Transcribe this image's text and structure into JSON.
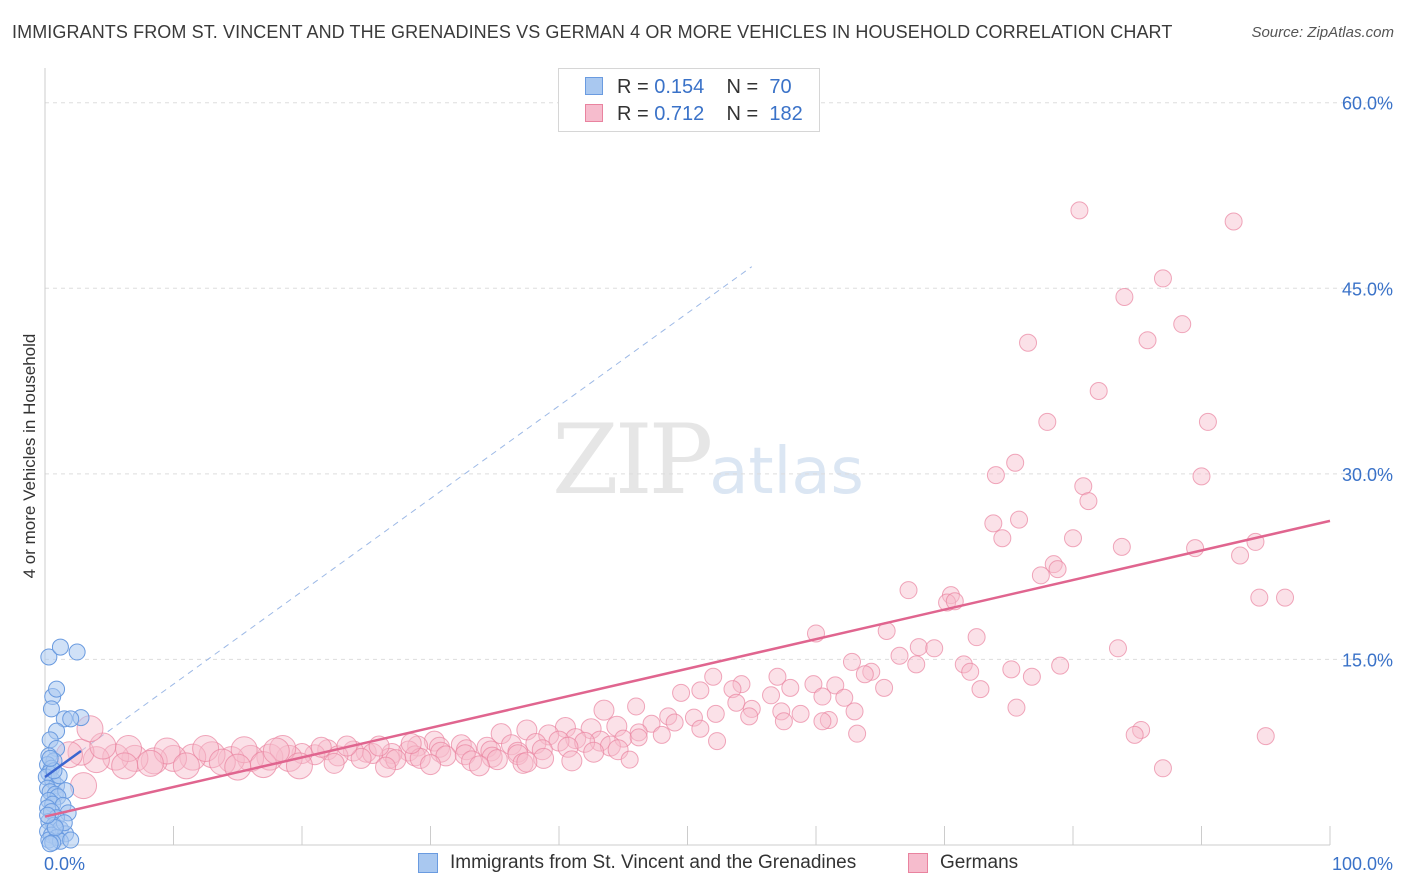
{
  "title": "IMMIGRANTS FROM ST. VINCENT AND THE GRENADINES VS GERMAN 4 OR MORE VEHICLES IN HOUSEHOLD CORRELATION CHART",
  "source": "Source: ZipAtlas.com",
  "watermark": {
    "zip": "ZIP",
    "atlas": "atlas"
  },
  "legend_top": [
    {
      "r_label": "R =",
      "r_value": "0.154",
      "n_label": "N =",
      "n_value": "70"
    },
    {
      "r_label": "R =",
      "r_value": "0.712",
      "n_label": "N =",
      "n_value": "182"
    }
  ],
  "legend_bottom": [
    "Immigrants from St. Vincent and the Grenadines",
    "Germans"
  ],
  "colors": {
    "blue_fill": "#a9c8f0",
    "blue_stroke": "#6a9be0",
    "blue_line": "#3a66d0",
    "pink_fill": "#f6bccd",
    "pink_stroke": "#e9839f",
    "pink_line": "#e0658f",
    "axis_text": "#3a72c8",
    "grid": "#dddddd"
  },
  "chart_data": {
    "type": "scatter",
    "title": "IMMIGRANTS FROM ST. VINCENT AND THE GRENADINES VS GERMAN 4 OR MORE VEHICLES IN HOUSEHOLD CORRELATION CHART",
    "xlabel": "",
    "ylabel": "4 or more Vehicles in Household",
    "xlim": [
      0,
      100
    ],
    "ylim": [
      0,
      62
    ],
    "x_tick_labels": [
      "0.0%",
      "100.0%"
    ],
    "y_ticks": [
      15,
      30,
      45,
      60
    ],
    "y_tick_labels": [
      "15.0%",
      "30.0%",
      "45.0%",
      "60.0%"
    ],
    "grid": true,
    "legend_position": "top-center",
    "series": [
      {
        "name": "Immigrants from St. Vincent and the Grenadines",
        "points": [
          [
            0.3,
            15.2
          ],
          [
            1.2,
            16.0
          ],
          [
            2.5,
            15.6
          ],
          [
            0.6,
            12.0
          ],
          [
            0.9,
            12.6
          ],
          [
            0.5,
            11.0
          ],
          [
            1.5,
            10.2
          ],
          [
            2.8,
            10.3
          ],
          [
            2.0,
            10.2
          ],
          [
            0.9,
            9.2
          ],
          [
            0.4,
            8.5
          ],
          [
            0.9,
            7.8
          ],
          [
            0.3,
            7.2
          ],
          [
            0.7,
            6.8
          ],
          [
            0.2,
            6.5
          ],
          [
            0.5,
            6.2
          ],
          [
            0.3,
            5.8
          ],
          [
            0.1,
            5.5
          ],
          [
            0.6,
            5.2
          ],
          [
            0.9,
            4.8
          ],
          [
            0.2,
            4.6
          ],
          [
            0.4,
            4.3
          ],
          [
            0.8,
            4.1
          ],
          [
            1.6,
            4.4
          ],
          [
            1.0,
            3.9
          ],
          [
            0.3,
            3.6
          ],
          [
            0.6,
            3.3
          ],
          [
            1.4,
            3.2
          ],
          [
            0.2,
            3.0
          ],
          [
            0.5,
            2.7
          ],
          [
            1.8,
            2.6
          ],
          [
            0.9,
            2.2
          ],
          [
            0.3,
            1.9
          ],
          [
            0.7,
            1.6
          ],
          [
            1.2,
            1.3
          ],
          [
            0.2,
            1.1
          ],
          [
            0.5,
            0.8
          ],
          [
            1.6,
            0.9
          ],
          [
            0.9,
            0.6
          ],
          [
            0.3,
            0.4
          ],
          [
            1.2,
            0.3
          ],
          [
            0.6,
            0.2
          ],
          [
            2.0,
            0.4
          ],
          [
            0.4,
            0.1
          ],
          [
            1.5,
            1.8
          ],
          [
            0.8,
            1.4
          ],
          [
            0.2,
            2.4
          ],
          [
            1.1,
            5.6
          ],
          [
            0.7,
            6.0
          ],
          [
            0.4,
            7.0
          ]
        ],
        "trend": [
          [
            0.0,
            5.5
          ],
          [
            2.8,
            7.6
          ]
        ]
      },
      {
        "name": "Germans",
        "points": [
          [
            80.5,
            51.3
          ],
          [
            92.5,
            50.4
          ],
          [
            87.0,
            45.8
          ],
          [
            84.0,
            44.3
          ],
          [
            88.5,
            42.1
          ],
          [
            76.5,
            40.6
          ],
          [
            85.8,
            40.8
          ],
          [
            82.0,
            36.7
          ],
          [
            78.0,
            34.2
          ],
          [
            90.5,
            34.2
          ],
          [
            74.0,
            29.9
          ],
          [
            75.5,
            30.9
          ],
          [
            80.8,
            29.0
          ],
          [
            90.0,
            29.8
          ],
          [
            81.2,
            27.8
          ],
          [
            73.8,
            26.0
          ],
          [
            75.8,
            26.3
          ],
          [
            74.5,
            24.8
          ],
          [
            80.0,
            24.8
          ],
          [
            83.8,
            24.1
          ],
          [
            89.5,
            24.0
          ],
          [
            93.0,
            23.4
          ],
          [
            94.2,
            24.5
          ],
          [
            78.5,
            22.7
          ],
          [
            77.5,
            21.8
          ],
          [
            78.8,
            22.3
          ],
          [
            67.2,
            20.6
          ],
          [
            70.5,
            20.2
          ],
          [
            70.2,
            19.6
          ],
          [
            70.8,
            19.7
          ],
          [
            94.5,
            20.0
          ],
          [
            96.5,
            20.0
          ],
          [
            60.0,
            17.1
          ],
          [
            65.5,
            17.3
          ],
          [
            72.5,
            16.8
          ],
          [
            68.0,
            16.0
          ],
          [
            69.2,
            15.9
          ],
          [
            83.5,
            15.9
          ],
          [
            66.5,
            15.3
          ],
          [
            71.5,
            14.6
          ],
          [
            67.8,
            14.6
          ],
          [
            64.3,
            14.0
          ],
          [
            62.8,
            14.8
          ],
          [
            75.2,
            14.2
          ],
          [
            72.0,
            14.0
          ],
          [
            76.8,
            13.6
          ],
          [
            79.0,
            14.5
          ],
          [
            52.0,
            13.6
          ],
          [
            57.0,
            13.6
          ],
          [
            54.2,
            13.0
          ],
          [
            59.8,
            13.0
          ],
          [
            61.5,
            12.9
          ],
          [
            53.5,
            12.6
          ],
          [
            63.8,
            13.8
          ],
          [
            72.8,
            12.6
          ],
          [
            65.3,
            12.7
          ],
          [
            49.5,
            12.3
          ],
          [
            51.0,
            12.5
          ],
          [
            56.5,
            12.1
          ],
          [
            58.0,
            12.7
          ],
          [
            60.5,
            12.0
          ],
          [
            62.2,
            11.9
          ],
          [
            53.8,
            11.5
          ],
          [
            55.0,
            11.0
          ],
          [
            57.3,
            10.8
          ],
          [
            58.8,
            10.6
          ],
          [
            61.0,
            10.1
          ],
          [
            63.0,
            10.8
          ],
          [
            75.6,
            11.1
          ],
          [
            43.5,
            10.9
          ],
          [
            46.0,
            11.2
          ],
          [
            48.5,
            10.4
          ],
          [
            50.5,
            10.3
          ],
          [
            52.2,
            10.6
          ],
          [
            54.8,
            10.4
          ],
          [
            57.5,
            10.0
          ],
          [
            60.5,
            10.0
          ],
          [
            63.2,
            9.0
          ],
          [
            47.2,
            9.8
          ],
          [
            49.0,
            9.9
          ],
          [
            51.0,
            9.4
          ],
          [
            40.5,
            9.5
          ],
          [
            42.5,
            9.4
          ],
          [
            44.5,
            9.6
          ],
          [
            46.2,
            9.1
          ],
          [
            48.0,
            8.9
          ],
          [
            85.3,
            9.3
          ],
          [
            84.8,
            8.9
          ],
          [
            52.3,
            8.4
          ],
          [
            95.0,
            8.8
          ],
          [
            35.5,
            9.0
          ],
          [
            37.5,
            9.3
          ],
          [
            39.2,
            8.9
          ],
          [
            41.3,
            8.6
          ],
          [
            43.2,
            8.4
          ],
          [
            45.0,
            8.6
          ],
          [
            36.3,
            8.1
          ],
          [
            38.2,
            8.2
          ],
          [
            40.0,
            8.4
          ],
          [
            42.0,
            8.3
          ],
          [
            44.0,
            8.0
          ],
          [
            46.2,
            8.7
          ],
          [
            30.3,
            8.4
          ],
          [
            32.4,
            8.1
          ],
          [
            34.4,
            7.9
          ],
          [
            29.0,
            8.0
          ],
          [
            30.7,
            7.9
          ],
          [
            32.8,
            7.7
          ],
          [
            34.7,
            7.6
          ],
          [
            36.8,
            7.5
          ],
          [
            38.7,
            7.7
          ],
          [
            40.7,
            7.9
          ],
          [
            42.7,
            7.5
          ],
          [
            44.6,
            7.7
          ],
          [
            28.3,
            7.6
          ],
          [
            27.0,
            7.4
          ],
          [
            28.8,
            7.2
          ],
          [
            30.8,
            7.5
          ],
          [
            32.7,
            7.3
          ],
          [
            34.8,
            7.1
          ],
          [
            36.8,
            7.3
          ],
          [
            38.8,
            7.0
          ],
          [
            25.0,
            7.5
          ],
          [
            26.8,
            7.0
          ],
          [
            22.0,
            7.7
          ],
          [
            24.0,
            7.6
          ],
          [
            25.5,
            7.4
          ],
          [
            27.3,
            6.9
          ],
          [
            29.2,
            7.0
          ],
          [
            31.2,
            7.2
          ],
          [
            33.2,
            6.8
          ],
          [
            35.2,
            6.9
          ],
          [
            37.2,
            6.6
          ],
          [
            21.0,
            7.3
          ],
          [
            22.8,
            7.2
          ],
          [
            24.6,
            7.0
          ],
          [
            20.0,
            7.4
          ],
          [
            19.0,
            7.0
          ],
          [
            17.5,
            7.1
          ],
          [
            16.0,
            7.0
          ],
          [
            14.5,
            6.9
          ],
          [
            13.0,
            7.3
          ],
          [
            11.5,
            7.1
          ],
          [
            10.0,
            7.0
          ],
          [
            8.5,
            6.8
          ],
          [
            7.0,
            7.0
          ],
          [
            5.5,
            7.1
          ],
          [
            4.0,
            6.9
          ],
          [
            2.8,
            7.5
          ],
          [
            1.9,
            7.3
          ],
          [
            4.5,
            8.0
          ],
          [
            6.5,
            7.8
          ],
          [
            9.5,
            7.6
          ],
          [
            12.5,
            7.8
          ],
          [
            15.5,
            7.7
          ],
          [
            18.5,
            7.8
          ],
          [
            21.5,
            7.9
          ],
          [
            23.5,
            8.0
          ],
          [
            26.0,
            8.0
          ],
          [
            28.5,
            8.2
          ],
          [
            3.0,
            4.8
          ],
          [
            3.5,
            9.4
          ],
          [
            8.2,
            6.6
          ],
          [
            13.8,
            6.7
          ],
          [
            17.0,
            6.5
          ],
          [
            19.8,
            6.4
          ],
          [
            22.5,
            6.6
          ],
          [
            26.5,
            6.3
          ],
          [
            30.0,
            6.5
          ],
          [
            33.8,
            6.4
          ],
          [
            37.5,
            6.7
          ],
          [
            41.0,
            6.8
          ],
          [
            45.5,
            6.9
          ],
          [
            87.0,
            6.2
          ],
          [
            18.0,
            7.6
          ],
          [
            11.0,
            6.4
          ],
          [
            6.2,
            6.4
          ],
          [
            15.0,
            6.3
          ]
        ],
        "trend": [
          [
            0.0,
            2.3
          ],
          [
            100.0,
            26.2
          ]
        ]
      }
    ]
  }
}
